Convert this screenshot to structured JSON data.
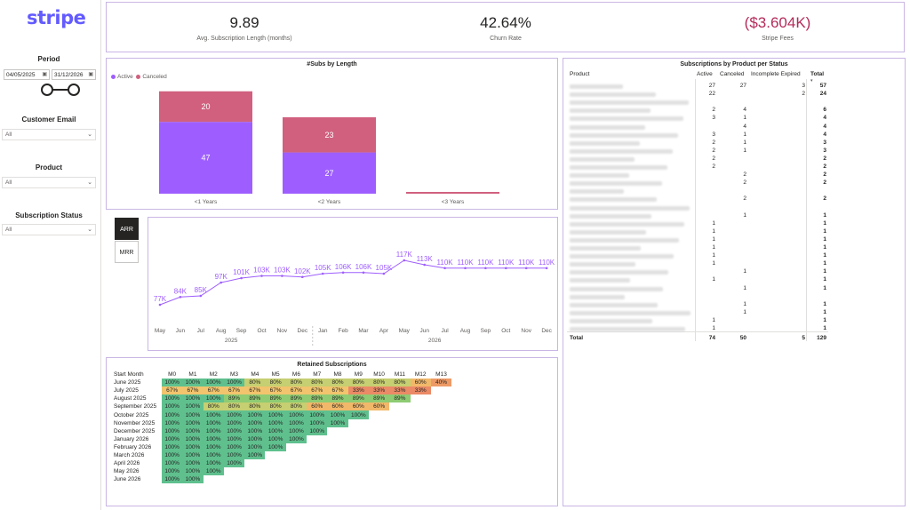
{
  "logo": "stripe",
  "sidebar": {
    "period_label": "Period",
    "date_from": "04/05/2025",
    "date_to": "31/12/2026",
    "customer_email_label": "Customer Email",
    "customer_email_value": "All",
    "product_label": "Product",
    "product_value": "All",
    "status_label": "Subscription Status",
    "status_value": "All"
  },
  "kpis": [
    {
      "value": "9.89",
      "label": "Avg. Subscription Length (months)"
    },
    {
      "value": "42.64%",
      "label": "Churn Rate"
    },
    {
      "value": "($3.604K)",
      "label": "Stripe Fees"
    }
  ],
  "colors": {
    "accent": "#635bff",
    "active": "#9e5eff",
    "canceled": "#d0607e",
    "negative": "#b52a5a"
  },
  "subs_by_length": {
    "title": "#Subs by Length",
    "legend": [
      "Active",
      "Canceled"
    ]
  },
  "arr_toggle": {
    "arr": "ARR",
    "mrr": "MRR"
  },
  "chart_data": [
    {
      "type": "bar",
      "title": "#Subs by Length",
      "categories": [
        "<1 Years",
        "<2 Years",
        "<3 Years"
      ],
      "series": [
        {
          "name": "Active",
          "values": [
            47,
            27,
            0
          ]
        },
        {
          "name": "Canceled",
          "values": [
            20,
            23,
            0
          ]
        }
      ],
      "ylim": [
        0,
        70
      ]
    },
    {
      "type": "line",
      "title": "",
      "x": [
        "May",
        "Jun",
        "Jul",
        "Aug",
        "Sep",
        "Oct",
        "Nov",
        "Dec",
        "Jan",
        "Feb",
        "Mar",
        "Apr",
        "May",
        "Jun",
        "Jul",
        "Aug",
        "Sep",
        "Oct",
        "Nov",
        "Dec"
      ],
      "year_labels": [
        "2025",
        "2026"
      ],
      "series": [
        {
          "values": [
            77,
            84,
            85,
            97,
            101,
            103,
            103,
            102,
            105,
            106,
            106,
            105,
            117,
            113,
            110,
            110,
            110,
            110,
            110,
            110
          ],
          "labels": [
            "77K",
            "84K",
            "85K",
            "97K",
            "101K",
            "103K",
            "103K",
            "102K",
            "105K",
            "106K",
            "106K",
            "105K",
            "117K",
            "113K",
            "110K",
            "110K",
            "110K",
            "110K",
            "110K",
            "110K"
          ]
        }
      ],
      "ylim": [
        70,
        120
      ]
    }
  ],
  "retained": {
    "title": "Retained Subscriptions",
    "header": [
      "Start Month",
      "M0",
      "M1",
      "M2",
      "M3",
      "M4",
      "M5",
      "M6",
      "M7",
      "M8",
      "M9",
      "M10",
      "M11",
      "M12",
      "M13"
    ],
    "rows": [
      {
        "month": "June 2025",
        "vals": [
          "100%",
          "100%",
          "100%",
          "100%",
          "80%",
          "80%",
          "80%",
          "80%",
          "80%",
          "80%",
          "80%",
          "80%",
          "60%",
          "40%"
        ]
      },
      {
        "month": "July 2025",
        "vals": [
          "67%",
          "67%",
          "67%",
          "67%",
          "67%",
          "67%",
          "67%",
          "67%",
          "67%",
          "33%",
          "33%",
          "33%",
          "33%"
        ]
      },
      {
        "month": "August 2025",
        "vals": [
          "100%",
          "100%",
          "100%",
          "89%",
          "89%",
          "89%",
          "89%",
          "89%",
          "89%",
          "89%",
          "89%",
          "89%"
        ]
      },
      {
        "month": "September 2025",
        "vals": [
          "100%",
          "100%",
          "80%",
          "80%",
          "80%",
          "80%",
          "80%",
          "60%",
          "60%",
          "60%",
          "60%"
        ]
      },
      {
        "month": "October 2025",
        "vals": [
          "100%",
          "100%",
          "100%",
          "100%",
          "100%",
          "100%",
          "100%",
          "100%",
          "100%",
          "100%"
        ]
      },
      {
        "month": "November 2025",
        "vals": [
          "100%",
          "100%",
          "100%",
          "100%",
          "100%",
          "100%",
          "100%",
          "100%",
          "100%"
        ]
      },
      {
        "month": "December 2025",
        "vals": [
          "100%",
          "100%",
          "100%",
          "100%",
          "100%",
          "100%",
          "100%",
          "100%"
        ]
      },
      {
        "month": "January 2026",
        "vals": [
          "100%",
          "100%",
          "100%",
          "100%",
          "100%",
          "100%",
          "100%"
        ]
      },
      {
        "month": "February 2026",
        "vals": [
          "100%",
          "100%",
          "100%",
          "100%",
          "100%",
          "100%"
        ]
      },
      {
        "month": "March 2026",
        "vals": [
          "100%",
          "100%",
          "100%",
          "100%",
          "100%"
        ]
      },
      {
        "month": "April 2026",
        "vals": [
          "100%",
          "100%",
          "100%",
          "100%"
        ]
      },
      {
        "month": "May 2026",
        "vals": [
          "100%",
          "100%",
          "100%"
        ]
      },
      {
        "month": "June 2026",
        "vals": [
          "100%",
          "100%"
        ]
      }
    ]
  },
  "products": {
    "title": "Subscriptions by Product per Status",
    "headers": {
      "product": "Product",
      "active": "Active",
      "canceled": "Canceled",
      "incomplete": "Incomplete Expired",
      "total": "Total"
    },
    "rows": [
      {
        "a": "27",
        "c": "27",
        "i": "3",
        "t": "57"
      },
      {
        "a": "22",
        "c": "",
        "i": "2",
        "t": "24"
      },
      {
        "a": "",
        "c": "",
        "i": "",
        "t": ""
      },
      {
        "a": "2",
        "c": "4",
        "i": "",
        "t": "6"
      },
      {
        "a": "3",
        "c": "1",
        "i": "",
        "t": "4"
      },
      {
        "a": "",
        "c": "4",
        "i": "",
        "t": "4"
      },
      {
        "a": "3",
        "c": "1",
        "i": "",
        "t": "4"
      },
      {
        "a": "2",
        "c": "1",
        "i": "",
        "t": "3"
      },
      {
        "a": "2",
        "c": "1",
        "i": "",
        "t": "3"
      },
      {
        "a": "2",
        "c": "",
        "i": "",
        "t": "2"
      },
      {
        "a": "2",
        "c": "",
        "i": "",
        "t": "2"
      },
      {
        "a": "",
        "c": "2",
        "i": "",
        "t": "2"
      },
      {
        "a": "",
        "c": "2",
        "i": "",
        "t": "2"
      },
      {
        "a": "",
        "c": "",
        "i": "",
        "t": ""
      },
      {
        "a": "",
        "c": "2",
        "i": "",
        "t": "2"
      },
      {
        "a": "",
        "c": "",
        "i": "",
        "t": ""
      },
      {
        "a": "",
        "c": "1",
        "i": "",
        "t": "1"
      },
      {
        "a": "1",
        "c": "",
        "i": "",
        "t": "1"
      },
      {
        "a": "1",
        "c": "",
        "i": "",
        "t": "1"
      },
      {
        "a": "1",
        "c": "",
        "i": "",
        "t": "1"
      },
      {
        "a": "1",
        "c": "",
        "i": "",
        "t": "1"
      },
      {
        "a": "1",
        "c": "",
        "i": "",
        "t": "1"
      },
      {
        "a": "1",
        "c": "",
        "i": "",
        "t": "1"
      },
      {
        "a": "",
        "c": "1",
        "i": "",
        "t": "1"
      },
      {
        "a": "1",
        "c": "",
        "i": "",
        "t": "1"
      },
      {
        "a": "",
        "c": "1",
        "i": "",
        "t": "1"
      },
      {
        "a": "",
        "c": "",
        "i": "",
        "t": ""
      },
      {
        "a": "",
        "c": "1",
        "i": "",
        "t": "1"
      },
      {
        "a": "",
        "c": "1",
        "i": "",
        "t": "1"
      },
      {
        "a": "1",
        "c": "",
        "i": "",
        "t": "1"
      },
      {
        "a": "1",
        "c": "",
        "i": "",
        "t": "1"
      }
    ],
    "total": {
      "label": "Total",
      "a": "74",
      "c": "50",
      "i": "5",
      "t": "129"
    }
  }
}
